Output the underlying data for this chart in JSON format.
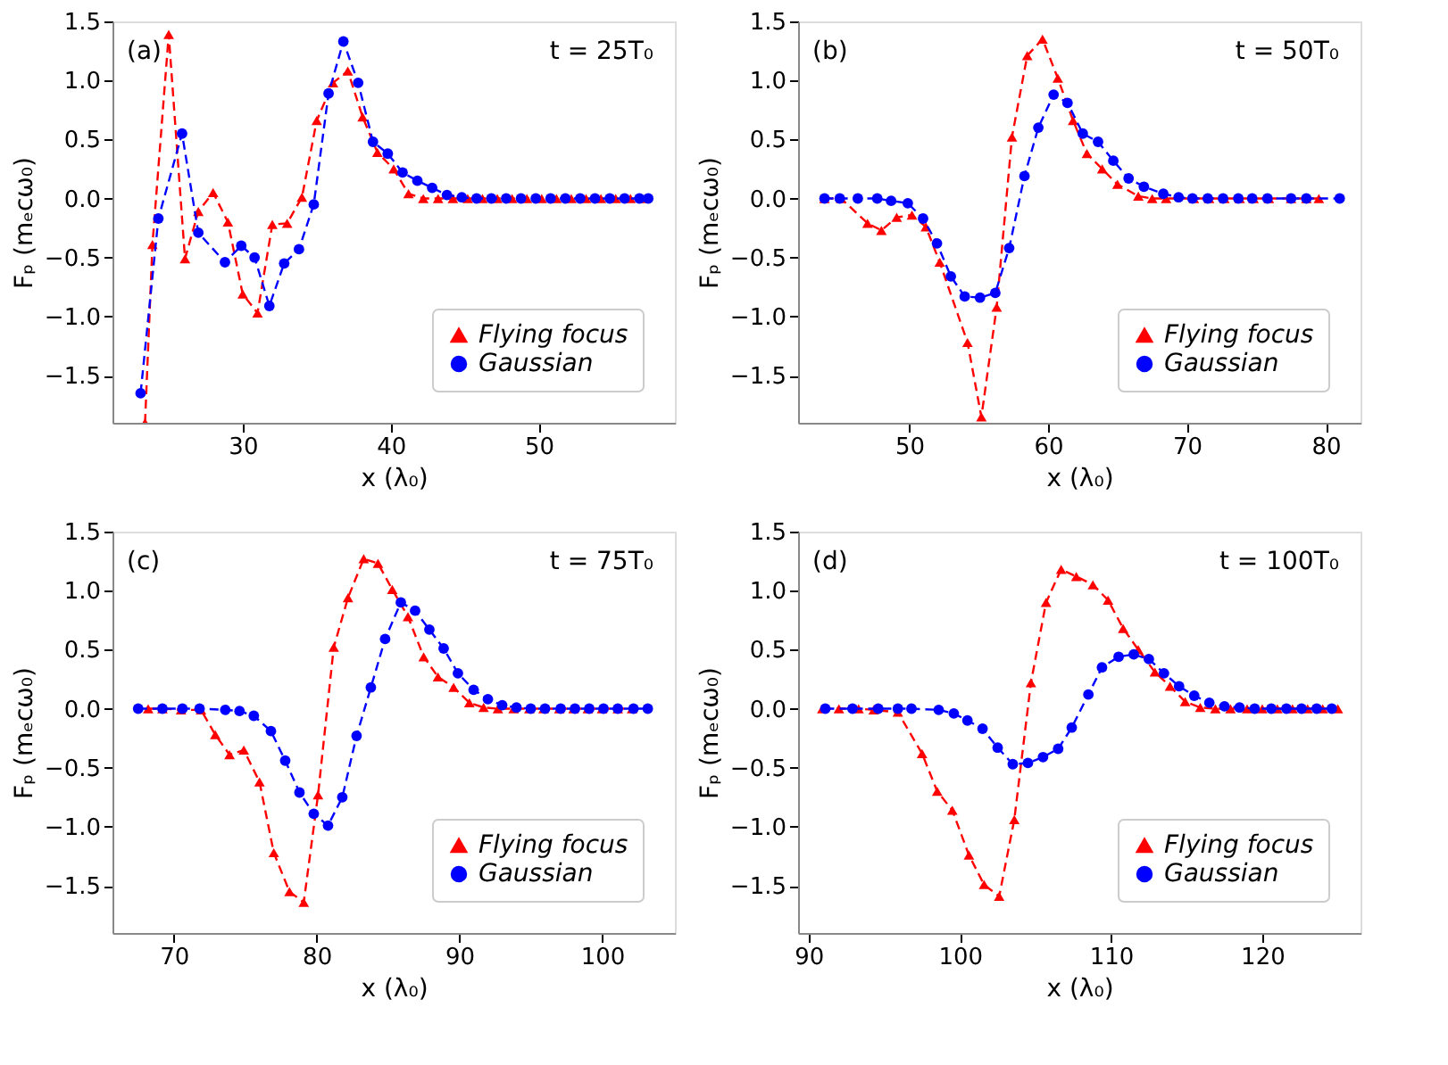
{
  "chart_data": [
    {
      "type": "line",
      "xlabel": "x (λ₀)",
      "ylabel": "Fₚ (mₑcω₀)",
      "annotations": [
        "(a)",
        "t = 25T₀"
      ],
      "legend": "bottom right",
      "line_style": "dashed",
      "xlim": [
        21.2,
        59.2
      ],
      "xticks": [
        30,
        40,
        50
      ],
      "ylim": [
        -1.9,
        1.5
      ],
      "yticks": [
        {
          "value": -1.5,
          "label": "−1.5"
        },
        {
          "value": -1,
          "label": "−1.0"
        },
        {
          "value": -0.5,
          "label": "−0.5"
        },
        {
          "value": 0,
          "label": "0.0"
        },
        {
          "value": 0.5,
          "label": "0.5"
        },
        {
          "value": 1,
          "label": "1.0"
        },
        {
          "value": 1.5,
          "label": "1.5"
        }
      ],
      "series": [
        {
          "name": "Flying focus",
          "color": "#ff0000",
          "marker": "triangle",
          "x": [
            23.4,
            23.9,
            25.0,
            26.1,
            27.0,
            28.0,
            29.0,
            30.0,
            31.0,
            32.0,
            33.0,
            34.0,
            35.0,
            36.1,
            37.1,
            38.1,
            39.1,
            40.2,
            41.2,
            42.2,
            43.2,
            44.2,
            45.2,
            46.2,
            47.2,
            48.2,
            49.2,
            50.2,
            51.2,
            52.2,
            53.2,
            54.2,
            55.2,
            56.2,
            57.2
          ],
          "values": [
            -1.9,
            -0.39,
            1.39,
            -0.51,
            -0.11,
            0.05,
            -0.2,
            -0.81,
            -0.97,
            -0.22,
            -0.21,
            0.01,
            0.66,
            0.98,
            1.08,
            0.69,
            0.39,
            0.25,
            0.04,
            0,
            0,
            0,
            0,
            0,
            0,
            0,
            0,
            0,
            0,
            0,
            0,
            0,
            0,
            0,
            0
          ]
        },
        {
          "name": "Gaussian",
          "color": "#0000ff",
          "marker": "circle",
          "x": [
            23.1,
            24.3,
            25.9,
            27.0,
            28.8,
            29.9,
            30.8,
            31.8,
            32.8,
            33.8,
            34.8,
            35.8,
            36.8,
            37.8,
            38.8,
            39.8,
            40.8,
            41.8,
            42.8,
            43.8,
            44.8,
            45.8,
            46.8,
            47.8,
            48.8,
            49.8,
            50.8,
            51.8,
            52.8,
            53.8,
            54.8,
            55.8,
            56.8,
            57.4
          ],
          "values": [
            -1.65,
            -0.17,
            0.55,
            -0.29,
            -0.54,
            -0.4,
            -0.5,
            -0.91,
            -0.55,
            -0.43,
            -0.05,
            0.89,
            1.33,
            0.98,
            0.48,
            0.38,
            0.22,
            0.15,
            0.09,
            0.03,
            0.01,
            0,
            0,
            0,
            0,
            0,
            0,
            0,
            0,
            0,
            0,
            0,
            0,
            0
          ]
        }
      ]
    },
    {
      "type": "line",
      "xlabel": "x (λ₀)",
      "ylabel": "Fₚ (mₑcω₀)",
      "annotations": [
        "(b)",
        "t = 50T₀"
      ],
      "legend": "bottom right",
      "line_style": "dashed",
      "xlim": [
        42.0,
        82.5
      ],
      "xticks": [
        50,
        60,
        70,
        80
      ],
      "ylim": [
        -1.9,
        1.5
      ],
      "yticks": [
        {
          "value": -1.5,
          "label": "−1.5"
        },
        {
          "value": -1,
          "label": "−1.0"
        },
        {
          "value": -0.5,
          "label": "−0.5"
        },
        {
          "value": 0,
          "label": "0.0"
        },
        {
          "value": 0.5,
          "label": "0.5"
        },
        {
          "value": 1,
          "label": "1.0"
        },
        {
          "value": 1.5,
          "label": "1.5"
        }
      ],
      "series": [
        {
          "name": "Flying focus",
          "color": "#ff0000",
          "marker": "triangle",
          "x": [
            43.9,
            45.1,
            47.0,
            48.0,
            49.1,
            50.2,
            51.2,
            52.2,
            54.2,
            55.2,
            56.3,
            57.4,
            58.5,
            59.6,
            60.7,
            61.8,
            62.8,
            63.9,
            65.0,
            66.5,
            67.5,
            68.5,
            70.5,
            71.6,
            72.7,
            73.8,
            74.8,
            75.9,
            77.5,
            78.6,
            79.5
          ],
          "values": [
            0,
            0,
            -0.21,
            -0.27,
            -0.16,
            -0.14,
            -0.24,
            -0.54,
            -1.22,
            -1.85,
            -0.92,
            0.52,
            1.21,
            1.35,
            1.02,
            0.66,
            0.38,
            0.25,
            0.12,
            0.02,
            0,
            0,
            0,
            0,
            0,
            0,
            0,
            0,
            0,
            0,
            0
          ]
        },
        {
          "name": "Gaussian",
          "color": "#0000ff",
          "marker": "circle",
          "x": [
            43.9,
            45.0,
            46.3,
            47.7,
            48.7,
            49.9,
            51.0,
            52.0,
            53.0,
            54.0,
            55.1,
            56.2,
            57.2,
            58.3,
            59.3,
            60.4,
            61.4,
            62.5,
            63.6,
            64.7,
            65.8,
            66.9,
            68.3,
            69.4,
            70.4,
            71.5,
            72.6,
            73.7,
            74.7,
            75.8,
            77.5,
            78.6,
            81.0
          ],
          "values": [
            0,
            0,
            0,
            0,
            -0.02,
            -0.04,
            -0.17,
            -0.38,
            -0.66,
            -0.83,
            -0.84,
            -0.8,
            -0.42,
            0.19,
            0.6,
            0.88,
            0.81,
            0.55,
            0.48,
            0.32,
            0.17,
            0.1,
            0.04,
            0.01,
            0,
            0,
            0,
            0,
            0,
            0,
            0,
            0,
            0
          ]
        }
      ]
    },
    {
      "type": "line",
      "xlabel": "x (λ₀)",
      "ylabel": "Fₚ (mₑcω₀)",
      "annotations": [
        "(c)",
        "t = 75T₀"
      ],
      "legend": "bottom right",
      "line_style": "dashed",
      "xlim": [
        65.7,
        105.1
      ],
      "xticks": [
        70,
        80,
        90,
        100
      ],
      "ylim": [
        -1.9,
        1.5
      ],
      "yticks": [
        {
          "value": -1.5,
          "label": "−1.5"
        },
        {
          "value": -1,
          "label": "−1.0"
        },
        {
          "value": -0.5,
          "label": "−0.5"
        },
        {
          "value": 0,
          "label": "0.0"
        },
        {
          "value": 0.5,
          "label": "0.5"
        },
        {
          "value": 1,
          "label": "1.0"
        },
        {
          "value": 1.5,
          "label": "1.5"
        }
      ],
      "series": [
        {
          "name": "Flying focus",
          "color": "#ff0000",
          "marker": "triangle",
          "x": [
            68.2,
            69.2,
            70.5,
            71.9,
            72.9,
            73.9,
            74.9,
            76.0,
            77.0,
            78.1,
            79.1,
            80.1,
            81.2,
            82.2,
            83.3,
            84.3,
            85.3,
            86.4,
            87.5,
            88.5,
            89.6,
            90.7,
            91.7,
            92.7,
            93.8,
            94.9,
            95.9,
            97.0,
            98.0,
            99.0,
            100.0,
            101.1,
            102.1
          ],
          "values": [
            0,
            0,
            -0.01,
            -0.01,
            -0.22,
            -0.39,
            -0.35,
            -0.62,
            -1.22,
            -1.55,
            -1.64,
            -0.73,
            0.52,
            0.94,
            1.27,
            1.23,
            1.01,
            0.78,
            0.44,
            0.27,
            0.18,
            0.05,
            0.01,
            0,
            0,
            0,
            0,
            0,
            0,
            0,
            0,
            0,
            0
          ]
        },
        {
          "name": "Gaussian",
          "color": "#0000ff",
          "marker": "circle",
          "x": [
            67.5,
            69.2,
            70.6,
            71.8,
            73.6,
            74.6,
            75.6,
            76.8,
            77.8,
            78.8,
            79.8,
            80.8,
            81.8,
            82.8,
            83.8,
            84.8,
            85.9,
            86.9,
            87.9,
            88.9,
            89.9,
            91.0,
            92.0,
            93.0,
            94.0,
            95.0,
            96.0,
            97.1,
            98.1,
            99.1,
            100.1,
            101.1,
            102.2,
            103.2
          ],
          "values": [
            0,
            0,
            0,
            0,
            -0.01,
            -0.02,
            -0.06,
            -0.19,
            -0.44,
            -0.71,
            -0.89,
            -0.99,
            -0.75,
            -0.23,
            0.18,
            0.59,
            0.9,
            0.83,
            0.67,
            0.51,
            0.3,
            0.16,
            0.08,
            0.03,
            0.01,
            0,
            0,
            0,
            0,
            0,
            0,
            0,
            0,
            0
          ]
        }
      ]
    },
    {
      "type": "line",
      "xlabel": "x (λ₀)",
      "ylabel": "Fₚ (mₑcω₀)",
      "annotations": [
        "(d)",
        "t = 100T₀"
      ],
      "legend": "bottom right",
      "line_style": "dashed",
      "xlim": [
        89.3,
        126.5
      ],
      "xticks": [
        90,
        100,
        110,
        120
      ],
      "ylim": [
        -1.9,
        1.5
      ],
      "yticks": [
        {
          "value": -1.5,
          "label": "−1.5"
        },
        {
          "value": -1,
          "label": "−1.0"
        },
        {
          "value": -0.5,
          "label": "−0.5"
        },
        {
          "value": 0,
          "label": "0.0"
        },
        {
          "value": 0.5,
          "label": "0.5"
        },
        {
          "value": 1,
          "label": "1.0"
        },
        {
          "value": 1.5,
          "label": "1.5"
        }
      ],
      "series": [
        {
          "name": "Flying focus",
          "color": "#ff0000",
          "marker": "triangle",
          "x": [
            90.9,
            92.0,
            93.3,
            94.3,
            95.9,
            97.5,
            98.5,
            99.5,
            100.6,
            101.6,
            102.6,
            103.6,
            104.7,
            105.7,
            106.7,
            107.7,
            108.8,
            109.8,
            110.8,
            111.8,
            112.9,
            113.9,
            114.9,
            115.9,
            116.9,
            117.9,
            119.0,
            120.0,
            121.0,
            122.0,
            123.0,
            124.0,
            125.0
          ],
          "values": [
            0,
            0,
            0,
            -0.01,
            -0.03,
            -0.38,
            -0.7,
            -0.86,
            -1.24,
            -1.49,
            -1.59,
            -0.94,
            0.22,
            0.9,
            1.18,
            1.12,
            1.05,
            0.92,
            0.68,
            0.5,
            0.31,
            0.19,
            0.06,
            0.01,
            0,
            0,
            0,
            0,
            0,
            0,
            0,
            0,
            0
          ]
        },
        {
          "name": "Gaussian",
          "color": "#0000ff",
          "marker": "circle",
          "x": [
            91.1,
            92.9,
            94.6,
            95.9,
            96.8,
            98.6,
            99.6,
            100.5,
            101.5,
            102.5,
            103.5,
            104.5,
            105.5,
            106.5,
            107.4,
            108.5,
            109.4,
            110.5,
            111.5,
            112.5,
            113.5,
            114.5,
            115.5,
            116.5,
            117.5,
            118.5,
            119.5,
            120.6,
            121.6,
            122.6,
            123.6,
            124.6
          ],
          "values": [
            0,
            0,
            0,
            0,
            0,
            -0.01,
            -0.04,
            -0.1,
            -0.17,
            -0.33,
            -0.47,
            -0.46,
            -0.41,
            -0.34,
            -0.16,
            0.12,
            0.35,
            0.44,
            0.46,
            0.42,
            0.3,
            0.19,
            0.11,
            0.05,
            0.02,
            0.01,
            0,
            0,
            0,
            0,
            0,
            0
          ]
        }
      ]
    }
  ]
}
